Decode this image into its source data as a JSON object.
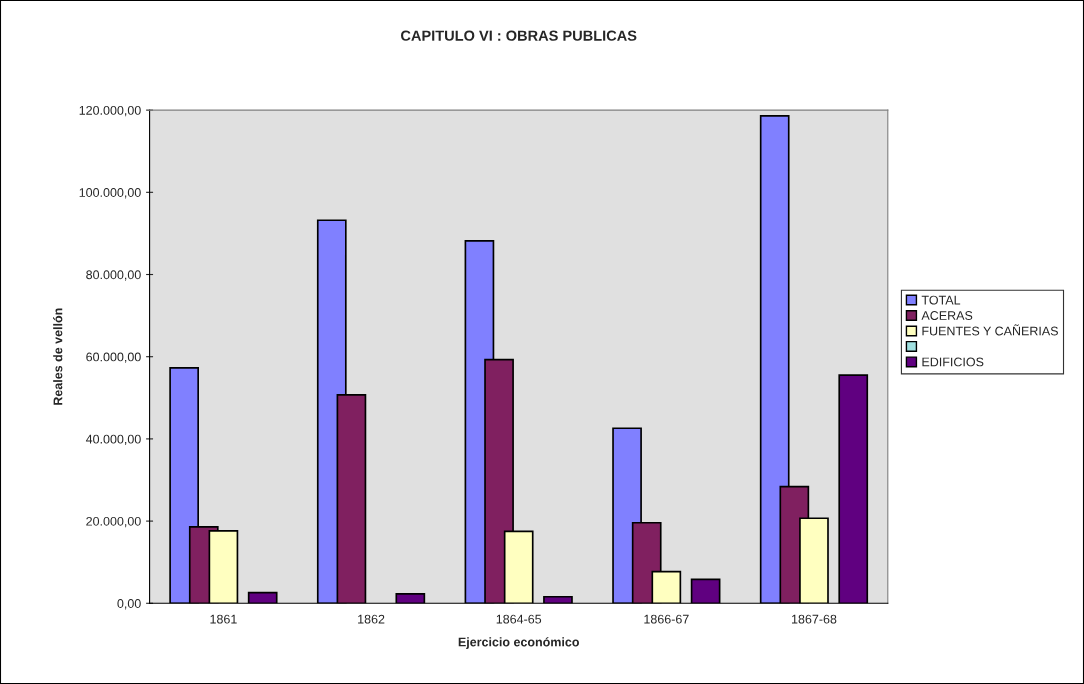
{
  "chart_data": {
    "type": "bar",
    "title": "CAPITULO VI : OBRAS PUBLICAS",
    "xlabel": "Ejercicio económico",
    "ylabel": "Reales de vellón",
    "categories": [
      "1861",
      "1862",
      "1864-65",
      "1866-67",
      "1867-68"
    ],
    "series": [
      {
        "name": "TOTAL",
        "color": "#8080ff",
        "values": [
          57300,
          93200,
          88200,
          42600,
          118600
        ]
      },
      {
        "name": "ACERAS",
        "color": "#802060",
        "values": [
          18600,
          50700,
          59300,
          19600,
          28400
        ]
      },
      {
        "name": "FUENTES Y CAÑERIAS",
        "color": "#ffffc0",
        "values": [
          17600,
          null,
          17500,
          7700,
          20700
        ]
      },
      {
        "color": "#a0e0e0",
        "values": [
          null,
          null,
          null,
          null,
          null
        ]
      },
      {
        "name": "EDIFICIOS",
        "color": "#600080",
        "values": [
          2600,
          2300,
          1600,
          5800,
          55500
        ]
      }
    ],
    "ylim": [
      0,
      120000
    ],
    "yticks": [
      {
        "value": 0,
        "label": "0,00"
      },
      {
        "value": 20000,
        "label": "20.000,00"
      },
      {
        "value": 40000,
        "label": "40.000,00"
      },
      {
        "value": 60000,
        "label": "60.000,00"
      },
      {
        "value": 80000,
        "label": "80.000,00"
      },
      {
        "value": 100000,
        "label": "100.000,00"
      },
      {
        "value": 120000,
        "label": "120.000,00"
      }
    ],
    "grid": false,
    "legend": "right"
  }
}
